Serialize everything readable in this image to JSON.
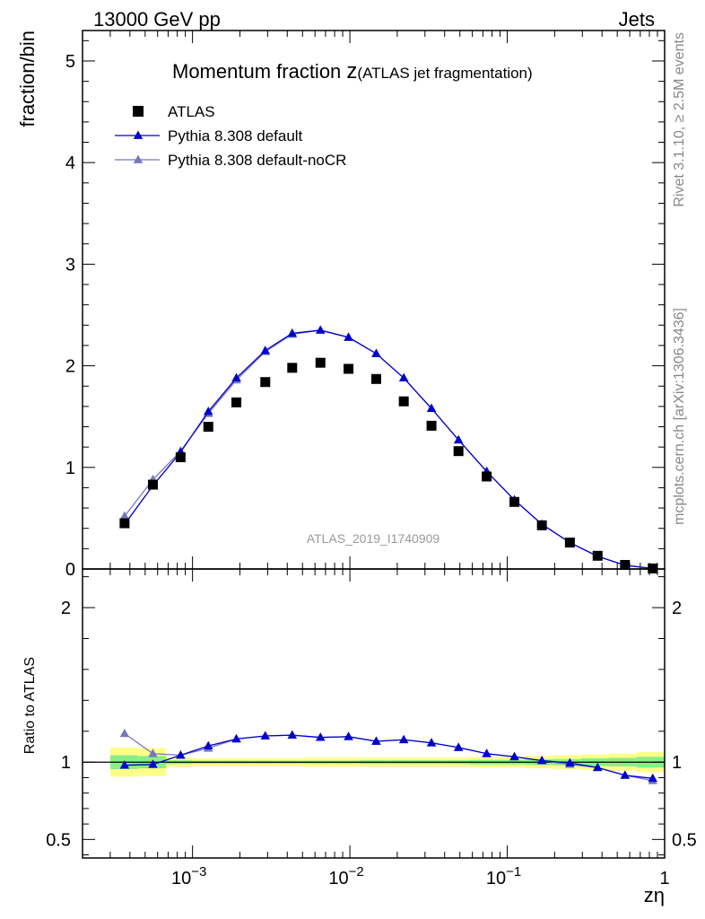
{
  "header": {
    "left": "13000 GeV pp",
    "right": "Jets"
  },
  "side_labels": {
    "rivet": "Rivet 3.1.10, ≥ 2.5M events",
    "mcplots": "mcplots.cern.ch [arXiv:1306.3436]"
  },
  "chart_data": {
    "type": "scatter",
    "title_main": "Momentum fraction ",
    "title_var": "z",
    "title_sub": "(ATLAS jet fragmentation)",
    "watermark": "ATLAS_2019_I1740909",
    "xlabel": "zη",
    "ylabel": "fraction/bin",
    "ratio_ylabel": "Ratio to ATLAS",
    "xscale": "log",
    "xlim": [
      0.0002,
      1
    ],
    "ylim": [
      0,
      5.3
    ],
    "ratio_ylim": [
      0.38,
      2.25
    ],
    "x_ticks": [
      {
        "value": 0.001,
        "base": "10",
        "exp": "−3"
      },
      {
        "value": 0.01,
        "base": "10",
        "exp": "−2"
      },
      {
        "value": 0.1,
        "base": "10",
        "exp": "−1"
      },
      {
        "value": 1,
        "base": "1",
        "exp": ""
      }
    ],
    "y_ticks": [
      {
        "value": 0,
        "label": "0"
      },
      {
        "value": 1,
        "label": "1"
      },
      {
        "value": 2,
        "label": "2"
      },
      {
        "value": 3,
        "label": "3"
      },
      {
        "value": 4,
        "label": "4"
      },
      {
        "value": 5,
        "label": "5"
      }
    ],
    "ratio_ticks": [
      {
        "value": 0.5,
        "label": "0.5"
      },
      {
        "value": 1,
        "label": "1"
      },
      {
        "value": 2,
        "label": "2"
      }
    ],
    "legend_position": "top-left",
    "x": [
      0.00037,
      0.00056,
      0.00084,
      0.00126,
      0.0019,
      0.0029,
      0.0043,
      0.0065,
      0.0098,
      0.0147,
      0.022,
      0.033,
      0.049,
      0.074,
      0.111,
      0.166,
      0.25,
      0.375,
      0.56,
      0.84
    ],
    "series": [
      {
        "name": "ATLAS",
        "color": "#000000",
        "marker": "square",
        "values": [
          0.45,
          0.83,
          1.1,
          1.4,
          1.64,
          1.84,
          1.98,
          2.03,
          1.97,
          1.87,
          1.65,
          1.41,
          1.16,
          0.91,
          0.66,
          0.43,
          0.26,
          0.13,
          0.04,
          0.005
        ]
      },
      {
        "name": "Pythia 8.308 default",
        "color": "#0000cc",
        "marker": "triangle",
        "values": [
          0.44,
          0.82,
          1.15,
          1.55,
          1.88,
          2.15,
          2.32,
          2.35,
          2.28,
          2.12,
          1.88,
          1.58,
          1.27,
          0.96,
          0.68,
          0.44,
          0.26,
          0.125,
          0.037,
          0.0045
        ],
        "ratio": [
          0.98,
          0.985,
          1.045,
          1.105,
          1.15,
          1.17,
          1.175,
          1.16,
          1.165,
          1.135,
          1.145,
          1.125,
          1.095,
          1.055,
          1.035,
          1.01,
          0.995,
          0.965,
          0.915,
          0.895
        ]
      },
      {
        "name": "Pythia 8.308 default-noCR",
        "color": "#7777bb",
        "marker": "triangle",
        "values": [
          0.52,
          0.88,
          1.16,
          1.53,
          1.86,
          2.14,
          2.31,
          2.35,
          2.28,
          2.12,
          1.88,
          1.58,
          1.27,
          0.96,
          0.68,
          0.44,
          0.26,
          0.125,
          0.037,
          0.0045
        ],
        "ratio": [
          1.185,
          1.055,
          1.045,
          1.09,
          1.15,
          1.17,
          1.175,
          1.16,
          1.165,
          1.135,
          1.145,
          1.125,
          1.095,
          1.055,
          1.035,
          1.01,
          0.985,
          0.965,
          0.915,
          0.88
        ]
      }
    ],
    "ratio_band": {
      "edges": [
        0.0003,
        0.00045,
        0.00068,
        0.001,
        0.0015,
        0.0023,
        0.0034,
        0.0051,
        0.0077,
        0.0115,
        0.0173,
        0.026,
        0.039,
        0.058,
        0.087,
        0.13,
        0.196,
        0.294,
        0.441,
        0.662,
        1.0
      ],
      "yellow": [
        0.095,
        0.09,
        0.03,
        0.025,
        0.025,
        0.025,
        0.025,
        0.03,
        0.03,
        0.03,
        0.03,
        0.03,
        0.03,
        0.035,
        0.035,
        0.04,
        0.045,
        0.05,
        0.055,
        0.065
      ],
      "green": [
        0.045,
        0.04,
        0.012,
        0.01,
        0.01,
        0.01,
        0.01,
        0.01,
        0.01,
        0.012,
        0.012,
        0.012,
        0.012,
        0.015,
        0.015,
        0.018,
        0.02,
        0.025,
        0.028,
        0.035
      ],
      "yellow_color": "#ffff88",
      "green_color": "#88ee88"
    }
  }
}
